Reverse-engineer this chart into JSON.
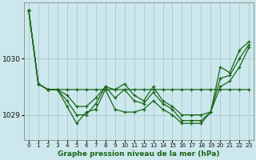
{
  "title": "Graphe pression niveau de la mer (hPa)",
  "background_color": "#cce8ec",
  "grid_color": "#aacdd4",
  "line_color": "#1a6618",
  "xlim": [
    -0.5,
    23.5
  ],
  "ylim": [
    1028.55,
    1031.0
  ],
  "yticks": [
    1029,
    1030
  ],
  "xticks": [
    0,
    1,
    2,
    3,
    4,
    5,
    6,
    7,
    8,
    9,
    10,
    11,
    12,
    13,
    14,
    15,
    16,
    17,
    18,
    19,
    20,
    21,
    22,
    23
  ],
  "series": [
    [
      1030.85,
      1029.55,
      1029.45,
      1029.45,
      1029.45,
      1029.45,
      1029.45,
      1029.45,
      1029.45,
      1029.45,
      1029.45,
      1029.45,
      1029.45,
      1029.45,
      1029.45,
      1029.45,
      1029.45,
      1029.45,
      1029.45,
      1029.45,
      1029.45,
      1029.45,
      1029.45,
      1029.45
    ],
    [
      1030.85,
      1029.55,
      1029.45,
      1029.45,
      1029.15,
      1028.85,
      1029.05,
      1029.1,
      1029.45,
      1029.1,
      1029.05,
      1029.05,
      1029.1,
      1029.25,
      1029.1,
      1029.0,
      1028.85,
      1028.85,
      1028.85,
      1029.05,
      1029.85,
      1029.75,
      1030.15,
      1030.3
    ],
    [
      1030.85,
      1029.55,
      1029.45,
      1029.45,
      1029.25,
      1029.0,
      1029.0,
      1029.2,
      1029.5,
      1029.45,
      1029.55,
      1029.35,
      1029.25,
      1029.5,
      1029.25,
      1029.15,
      1029.0,
      1029.0,
      1029.0,
      1029.05,
      1029.5,
      1029.6,
      1029.85,
      1030.2
    ],
    [
      1030.85,
      1029.55,
      1029.45,
      1029.45,
      1029.35,
      1029.15,
      1029.15,
      1029.3,
      1029.5,
      1029.3,
      1029.45,
      1029.25,
      1029.2,
      1029.4,
      1029.2,
      1029.1,
      1028.9,
      1028.9,
      1028.9,
      1029.05,
      1029.65,
      1029.7,
      1030.0,
      1030.25
    ]
  ]
}
